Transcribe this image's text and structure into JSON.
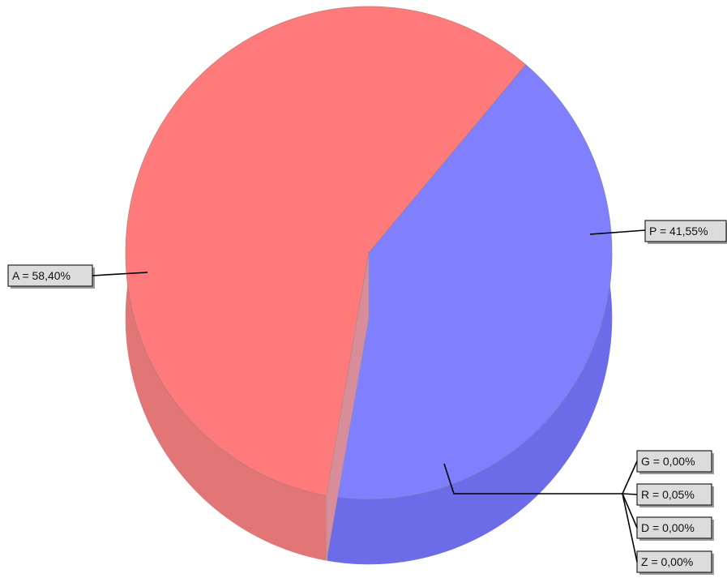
{
  "chart_data": {
    "type": "pie",
    "style": "3d",
    "slices": [
      {
        "key": "A",
        "label": "A = 58,40%",
        "value": 58.4,
        "color": "#ff7b7b",
        "side_color": "#e27575"
      },
      {
        "key": "P",
        "label": "P = 41,55%",
        "value": 41.55,
        "color": "#8080ff",
        "side_color": "#6c6ce8"
      },
      {
        "key": "G",
        "label": "G = 0,00%",
        "value": 0.0,
        "color": "#c8c8c8",
        "side_color": "#b0b0b0"
      },
      {
        "key": "R",
        "label": "R = 0,05%",
        "value": 0.05,
        "color": "#c8c8c8",
        "side_color": "#b0b0b0"
      },
      {
        "key": "D",
        "label": "D = 0,00%",
        "value": 0.0,
        "color": "#c8c8c8",
        "side_color": "#b0b0b0"
      },
      {
        "key": "Z",
        "label": "Z = 0,00%",
        "value": 0.0,
        "color": "#c8c8c8",
        "side_color": "#b0b0b0"
      }
    ],
    "title": "",
    "legend": "none"
  }
}
